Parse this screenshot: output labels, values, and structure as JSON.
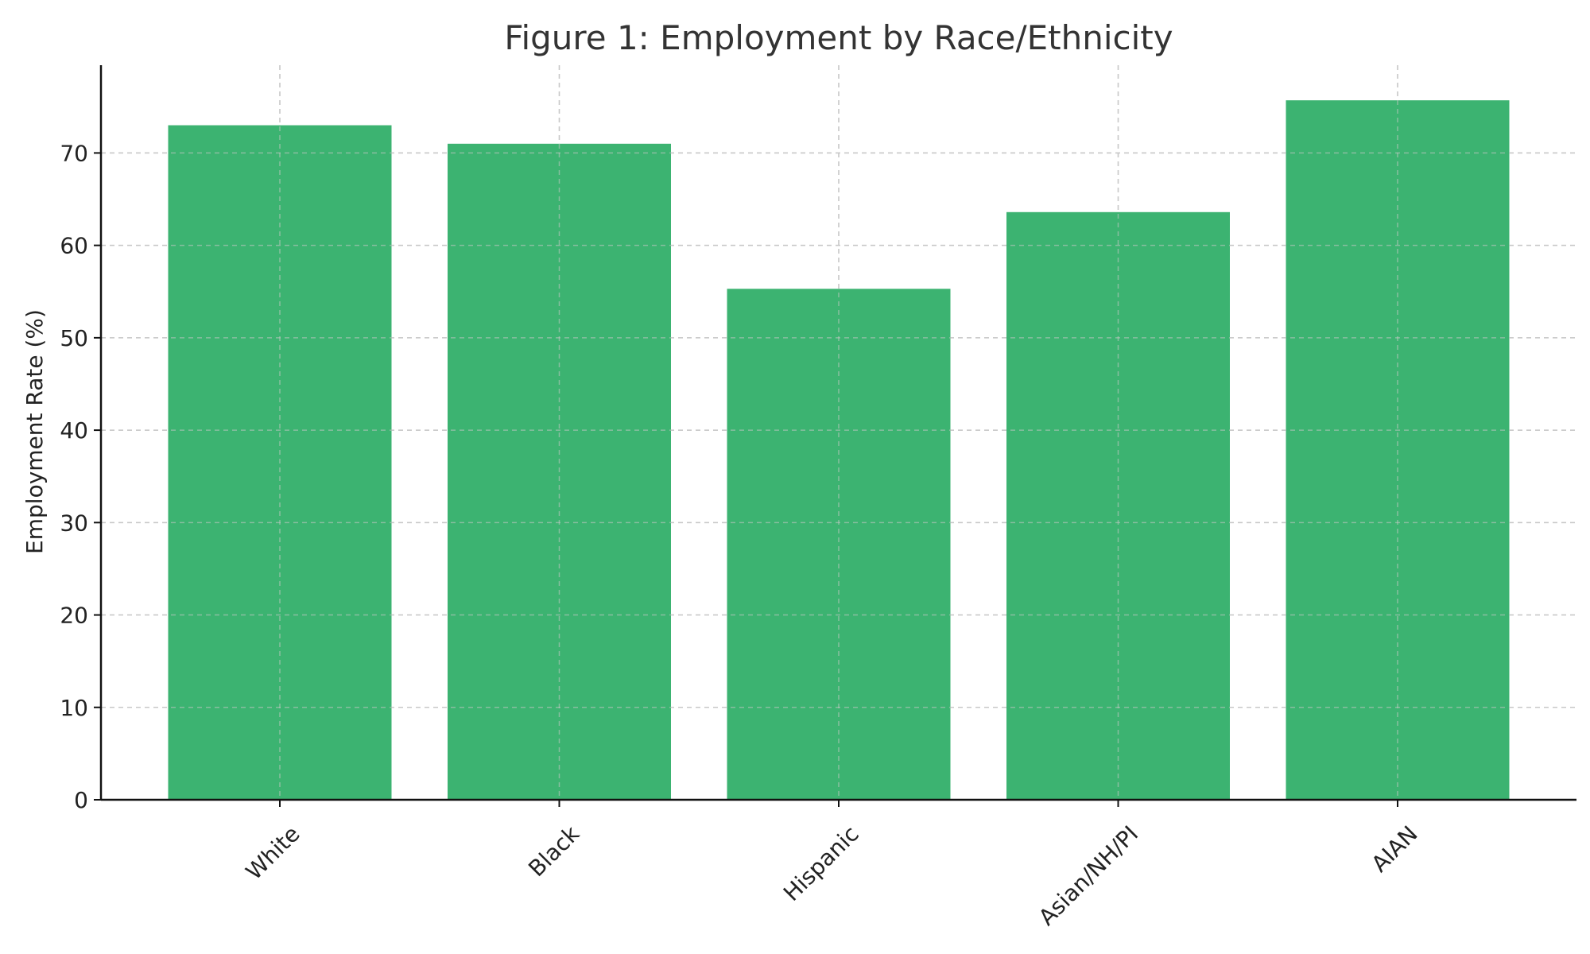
{
  "chart_data": {
    "type": "bar",
    "title": "Figure 1: Employment by Race/Ethnicity",
    "xlabel": "",
    "ylabel": "Employment Rate (%)",
    "categories": [
      "White",
      "Black",
      "Hispanic",
      "Asian/NH/PI",
      "AIAN"
    ],
    "values": [
      73.0,
      71.0,
      55.3,
      63.6,
      75.7
    ],
    "ylim": [
      0,
      79.5
    ],
    "yticks": [
      0,
      10,
      20,
      30,
      40,
      50,
      60,
      70
    ],
    "grid": true,
    "legend": "none",
    "bar_color": "#3cb371"
  }
}
